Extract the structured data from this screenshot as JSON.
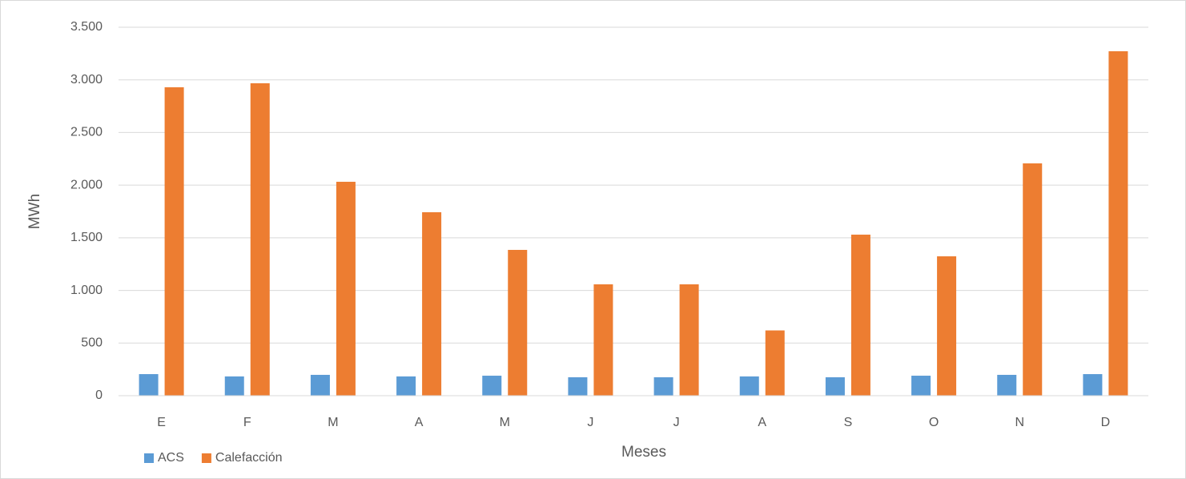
{
  "chart_data": {
    "type": "bar",
    "x_label": "Meses",
    "y_label": "MWh",
    "categories": [
      "E",
      "F",
      "M",
      "A",
      "M",
      "J",
      "J",
      "A",
      "S",
      "O",
      "N",
      "D"
    ],
    "series": [
      {
        "name": "ACS",
        "color": "#5b9bd5",
        "values": [
          205,
          183,
          198,
          183,
          190,
          175,
          175,
          183,
          175,
          190,
          198,
          205
        ]
      },
      {
        "name": "Calefacción",
        "color": "#ed7d31",
        "values": [
          2930,
          2968,
          2032,
          1743,
          1385,
          1058,
          1058,
          620,
          1530,
          1324,
          2207,
          3272
        ]
      }
    ],
    "ylim": [
      0,
      3500
    ],
    "yticks": [
      0,
      500,
      {
        "value": 1000,
        "label": "1.000"
      },
      {
        "value": 1500,
        "label": "1.500"
      },
      {
        "value": 2000,
        "label": "2.000"
      },
      {
        "value": 2500,
        "label": "2.500"
      },
      {
        "value": 3000,
        "label": "3.000"
      },
      {
        "value": 3500,
        "label": "3.500"
      }
    ],
    "grid": true,
    "legend": "bottom-left"
  }
}
